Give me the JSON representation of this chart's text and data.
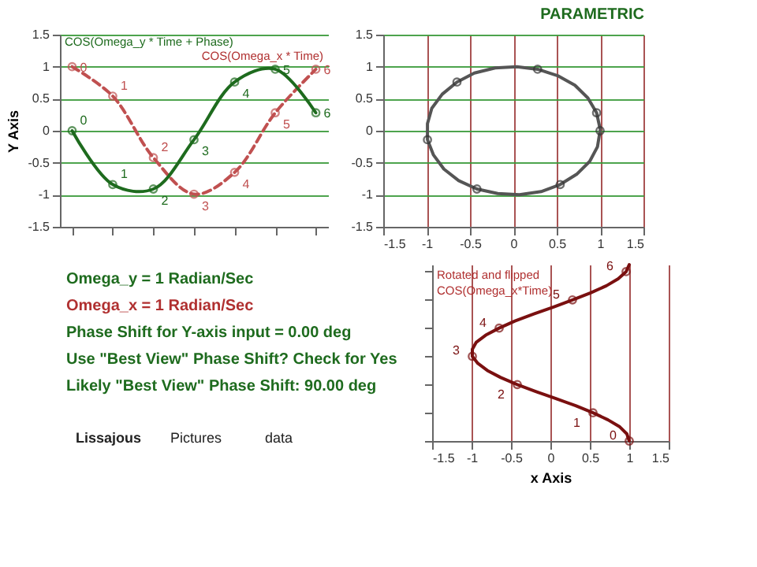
{
  "chart_data": [
    {
      "type": "line",
      "ylabel": "Y Axis",
      "ylim": [
        -1.5,
        1.5
      ],
      "yticks": [
        -1.5,
        -1,
        -0.5,
        0,
        0.5,
        1,
        1.5
      ],
      "grid": "y",
      "tick_labels": "y",
      "annotations": [
        "COS(Omega_y * Time + Phase)",
        "COS(Omega_x * Time)",
        "0",
        "1",
        "2",
        "3",
        "4",
        "5",
        "6",
        "0",
        "1",
        "2",
        "3",
        "4",
        "5",
        "6"
      ],
      "categories": [
        null,
        null,
        null,
        null,
        null,
        null,
        null
      ],
      "series": [
        {
          "type": "line",
          "color": "#c05050",
          "line_style": "dashed",
          "marker": "circle",
          "values": [
            1.0,
            0.54,
            -0.42,
            -0.99,
            -0.65,
            0.28,
            0.96
          ]
        },
        {
          "type": "line",
          "color": "#1e6b1e",
          "line_style": "solid",
          "marker": "circle",
          "values": [
            0,
            -0.84,
            -0.91,
            -0.14,
            0.76,
            0.96,
            0.28
          ]
        }
      ]
    },
    {
      "type": "line",
      "title": "PARAMETRIC",
      "xlim": [
        -1.5,
        1.5
      ],
      "ylim": [
        -1.5,
        1.5
      ],
      "xticks": [
        -1.5,
        -1,
        -0.5,
        0,
        0.5,
        1,
        1.5
      ],
      "yticks": [
        -1.5,
        -1,
        -0.5,
        0,
        0.5,
        1,
        1.5
      ],
      "grid": true,
      "series": [
        {
          "type": "line",
          "color": "#555555",
          "line_style": "solid",
          "marker": "none",
          "x": [
            1.0,
            0.97,
            0.88,
            0.73,
            0.54,
            0.32,
            0.07,
            -0.18,
            -0.42,
            -0.63,
            -0.8,
            -0.92,
            -0.99,
            -0.99,
            -0.94,
            -0.82,
            -0.65,
            -0.45,
            -0.21,
            0.04,
            0.28,
            0.51,
            0.71,
            0.86,
            0.96,
            1.0
          ],
          "values": [
            0,
            -0.25,
            -0.48,
            -0.68,
            -0.84,
            -0.95,
            -1.0,
            -0.98,
            -0.91,
            -0.78,
            -0.6,
            -0.38,
            -0.14,
            0.11,
            0.35,
            0.57,
            0.76,
            0.9,
            0.98,
            1.0,
            0.96,
            0.86,
            0.71,
            0.51,
            0.28,
            0.03
          ]
        },
        {
          "type": "scatter",
          "color": "#333333",
          "marker": "circle",
          "x": [
            1.0,
            0.54,
            -0.42,
            -0.99,
            -0.65,
            0.28,
            0.96
          ],
          "values": [
            0,
            -0.84,
            -0.91,
            -0.14,
            0.76,
            0.96,
            0.28
          ]
        }
      ]
    },
    {
      "type": "other",
      "annotations": [
        "Omega_y =   1   Radian/Sec",
        "Omega_x =   1   Radian/Sec",
        "Phase Shift for Y-axis input =   0.00 deg",
        "Use \"Best View\" Phase Shift?   Check for Yes",
        "Likely \"Best View\" Phase Shift:   90.00 deg",
        "Lissajous",
        "Pictures",
        "data"
      ]
    },
    {
      "type": "line",
      "xlabel": "x Axis",
      "xlim": [
        -1.5,
        1.5
      ],
      "ylim": [
        0,
        6.25
      ],
      "xticks": [
        -1.5,
        -1,
        -0.5,
        0,
        0.5,
        1,
        1.5
      ],
      "grid": "x",
      "tick_labels": "x",
      "annotations": [
        "Rotated and flipped",
        "COS(Omega_x*Time)"
      ],
      "series": [
        {
          "type": "line",
          "color": "#7a1010",
          "line_style": "solid",
          "marker": "none",
          "x": [
            1.0,
            0.97,
            0.88,
            0.73,
            0.54,
            0.32,
            0.07,
            -0.18,
            -0.42,
            -0.63,
            -0.8,
            -0.92,
            -0.99,
            -0.99,
            -0.94,
            -0.82,
            -0.65,
            -0.45,
            -0.21,
            0.04,
            0.28,
            0.51,
            0.71,
            0.86,
            0.96,
            1.0
          ],
          "values": [
            0,
            0.25,
            0.5,
            0.75,
            1,
            1.25,
            1.5,
            1.75,
            2,
            2.25,
            2.5,
            2.75,
            3,
            3.25,
            3.5,
            3.75,
            4,
            4.25,
            4.5,
            4.75,
            5,
            5.25,
            5.5,
            5.75,
            6,
            6.25
          ]
        },
        {
          "type": "scatter",
          "color": "#7a1010",
          "marker": "circle",
          "x": [
            1.0,
            0.54,
            -0.42,
            -0.99,
            -0.65,
            0.28,
            0.96
          ],
          "values": [
            0,
            1,
            2,
            3,
            4,
            5,
            6
          ],
          "value_labels": [
            "0",
            "1",
            "2",
            "3",
            "4",
            "5",
            "6"
          ]
        }
      ]
    }
  ]
}
